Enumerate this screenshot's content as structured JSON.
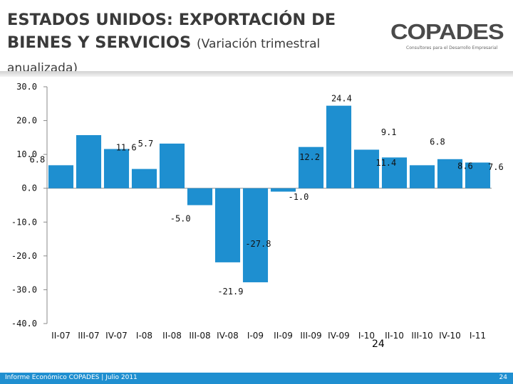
{
  "slide": {
    "title_main": "ESTADOS UNIDOS: EXPORTACIÓN DE BIENES Y SERVICIOS",
    "title_sub": "(Variación trimestral anualizada)",
    "page_number": "24",
    "footer_left": "Informe Económico COPADES  |  Julio 2011",
    "footer_right": "24"
  },
  "logo": {
    "name": "COPADES",
    "tagline": "Consultores para el Desarrollo Empresarial"
  },
  "colors": {
    "bar": "#1e8fd0",
    "footer": "#1f8fd0",
    "title": "#3a3a3a"
  },
  "chart_data": {
    "type": "bar",
    "title": "ESTADOS UNIDOS: EXPORTACIÓN DE BIENES Y SERVICIOS (Variación trimestral anualizada)",
    "categories": [
      "II-07",
      "III-07",
      "IV-07",
      "I-08",
      "II-08",
      "III-08",
      "IV-08",
      "I-09",
      "II-09",
      "III-09",
      "IV-09",
      "I-10",
      "II-10",
      "III-10",
      "IV-10",
      "I-11"
    ],
    "values": [
      6.8,
      15.7,
      11.6,
      5.7,
      13.2,
      -5.0,
      -21.9,
      -27.8,
      -1.0,
      12.2,
      24.4,
      11.4,
      9.1,
      6.8,
      8.6,
      7.6
    ],
    "data_labels": [
      "6.8",
      "",
      "11.6",
      "5.7",
      "",
      "-5.0",
      "-21.9",
      "-27.8",
      "-1.0",
      "12.2",
      "24.4",
      "11.4",
      "9.1",
      "6.8",
      "8.6",
      "7.6"
    ],
    "ylim": [
      -40,
      30
    ],
    "yticks": [
      "30.0",
      "20.0",
      "10.0",
      "0.0",
      "-10.0",
      "-20.0",
      "-30.0",
      "-40.0"
    ],
    "xlabel": "",
    "ylabel": "",
    "grid": false,
    "legend": "none"
  }
}
